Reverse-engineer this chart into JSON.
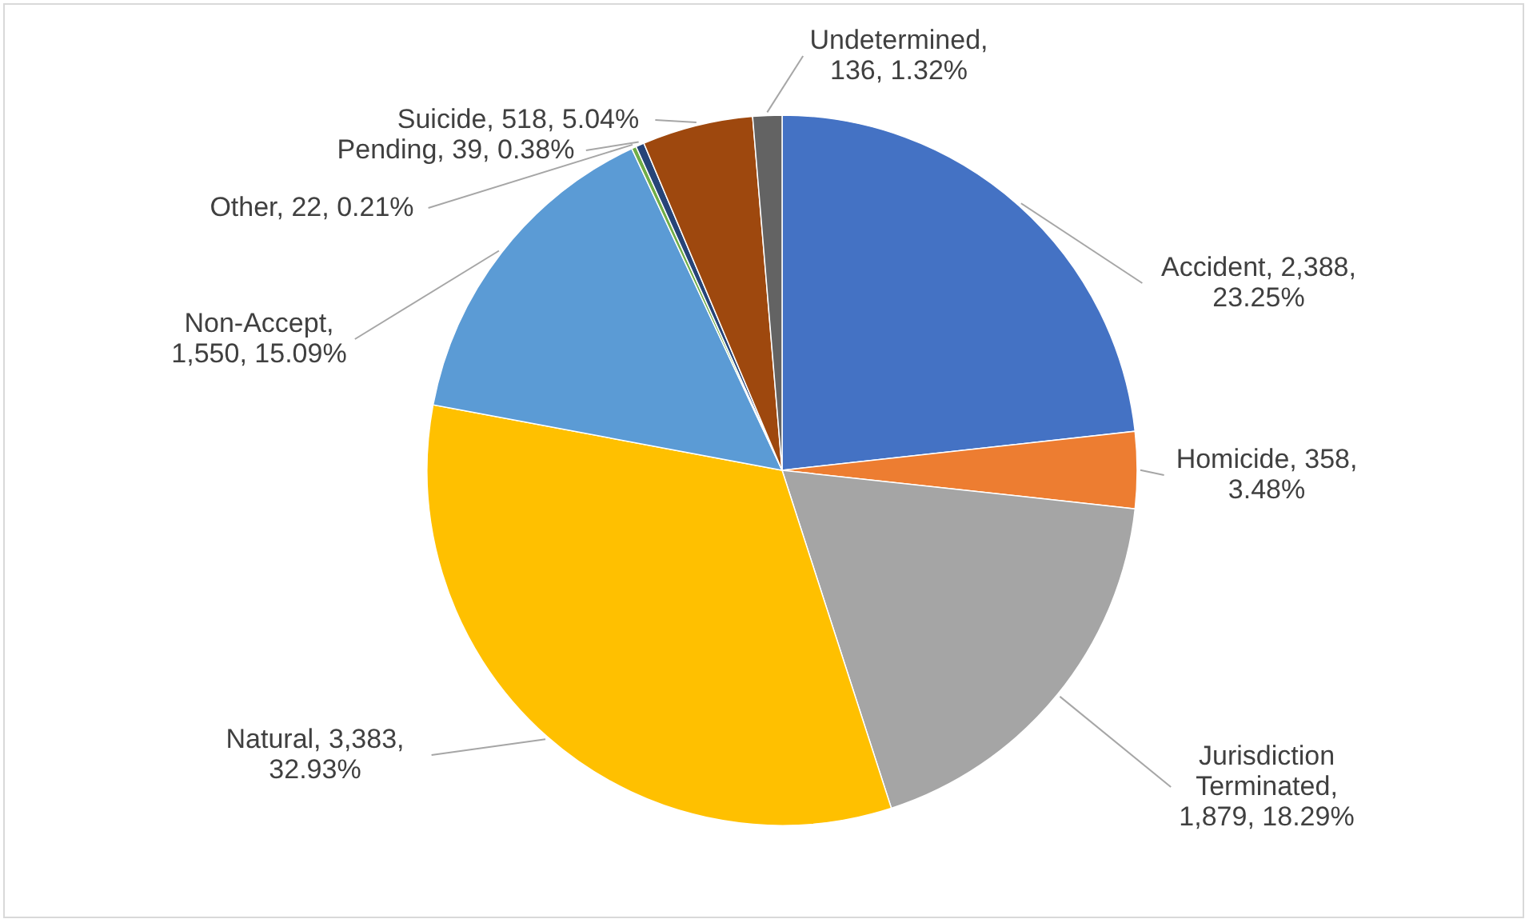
{
  "chart_data": {
    "type": "pie",
    "categories": [
      "Accident",
      "Homicide",
      "Jurisdiction Terminated",
      "Natural",
      "Non-Accept",
      "Other",
      "Pending",
      "Suicide",
      "Undetermined"
    ],
    "values": [
      2388,
      358,
      1879,
      3383,
      1550,
      22,
      39,
      518,
      136
    ],
    "colors": [
      "#4472c4",
      "#ed7d31",
      "#a5a5a5",
      "#ffc000",
      "#5b9bd5",
      "#70ad47",
      "#264478",
      "#9e480e",
      "#636363"
    ],
    "value_labels": [
      ", 2,388, 23.25%",
      ", 358, 3.48%",
      ", 1,879, 18.29%",
      ",  3,383, 32.93%",
      ", 1,550, 15.09%",
      ", 22, 0.21%",
      ", 39, 0.38%",
      ", 518, 5.04%",
      ", 136, 1.32%"
    ]
  }
}
